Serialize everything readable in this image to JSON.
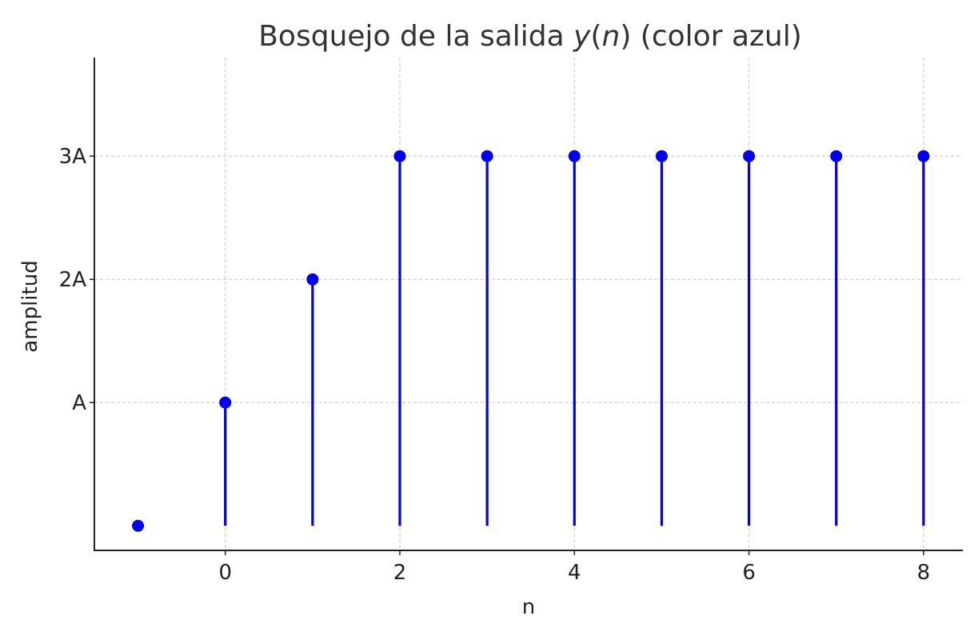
{
  "chart_data": {
    "type": "stem",
    "title": {
      "prefix": "Bosquejo de la salida ",
      "var_y": "y",
      "open_paren": "(",
      "var_n": "n",
      "close_paren": ")",
      "suffix": " (color azul)"
    },
    "xlabel": "n",
    "ylabel": "amplitud",
    "xlim": [
      -1.5,
      8.45
    ],
    "ylim": [
      -0.2,
      3.8
    ],
    "x_ticks": [
      {
        "value": 0,
        "label": "0"
      },
      {
        "value": 2,
        "label": "2"
      },
      {
        "value": 4,
        "label": "4"
      },
      {
        "value": 6,
        "label": "6"
      },
      {
        "value": 8,
        "label": "8"
      }
    ],
    "y_ticks": [
      {
        "value": 1,
        "label": "A"
      },
      {
        "value": 2,
        "label": "2A"
      },
      {
        "value": 3,
        "label": "3A"
      }
    ],
    "grid": true,
    "series": [
      {
        "color": "#0000ee",
        "x": [
          -1,
          0,
          1,
          2,
          3,
          4,
          5,
          6,
          7,
          8
        ],
        "y": [
          0,
          1,
          2,
          3,
          3,
          3,
          3,
          3,
          3,
          3
        ]
      }
    ]
  }
}
